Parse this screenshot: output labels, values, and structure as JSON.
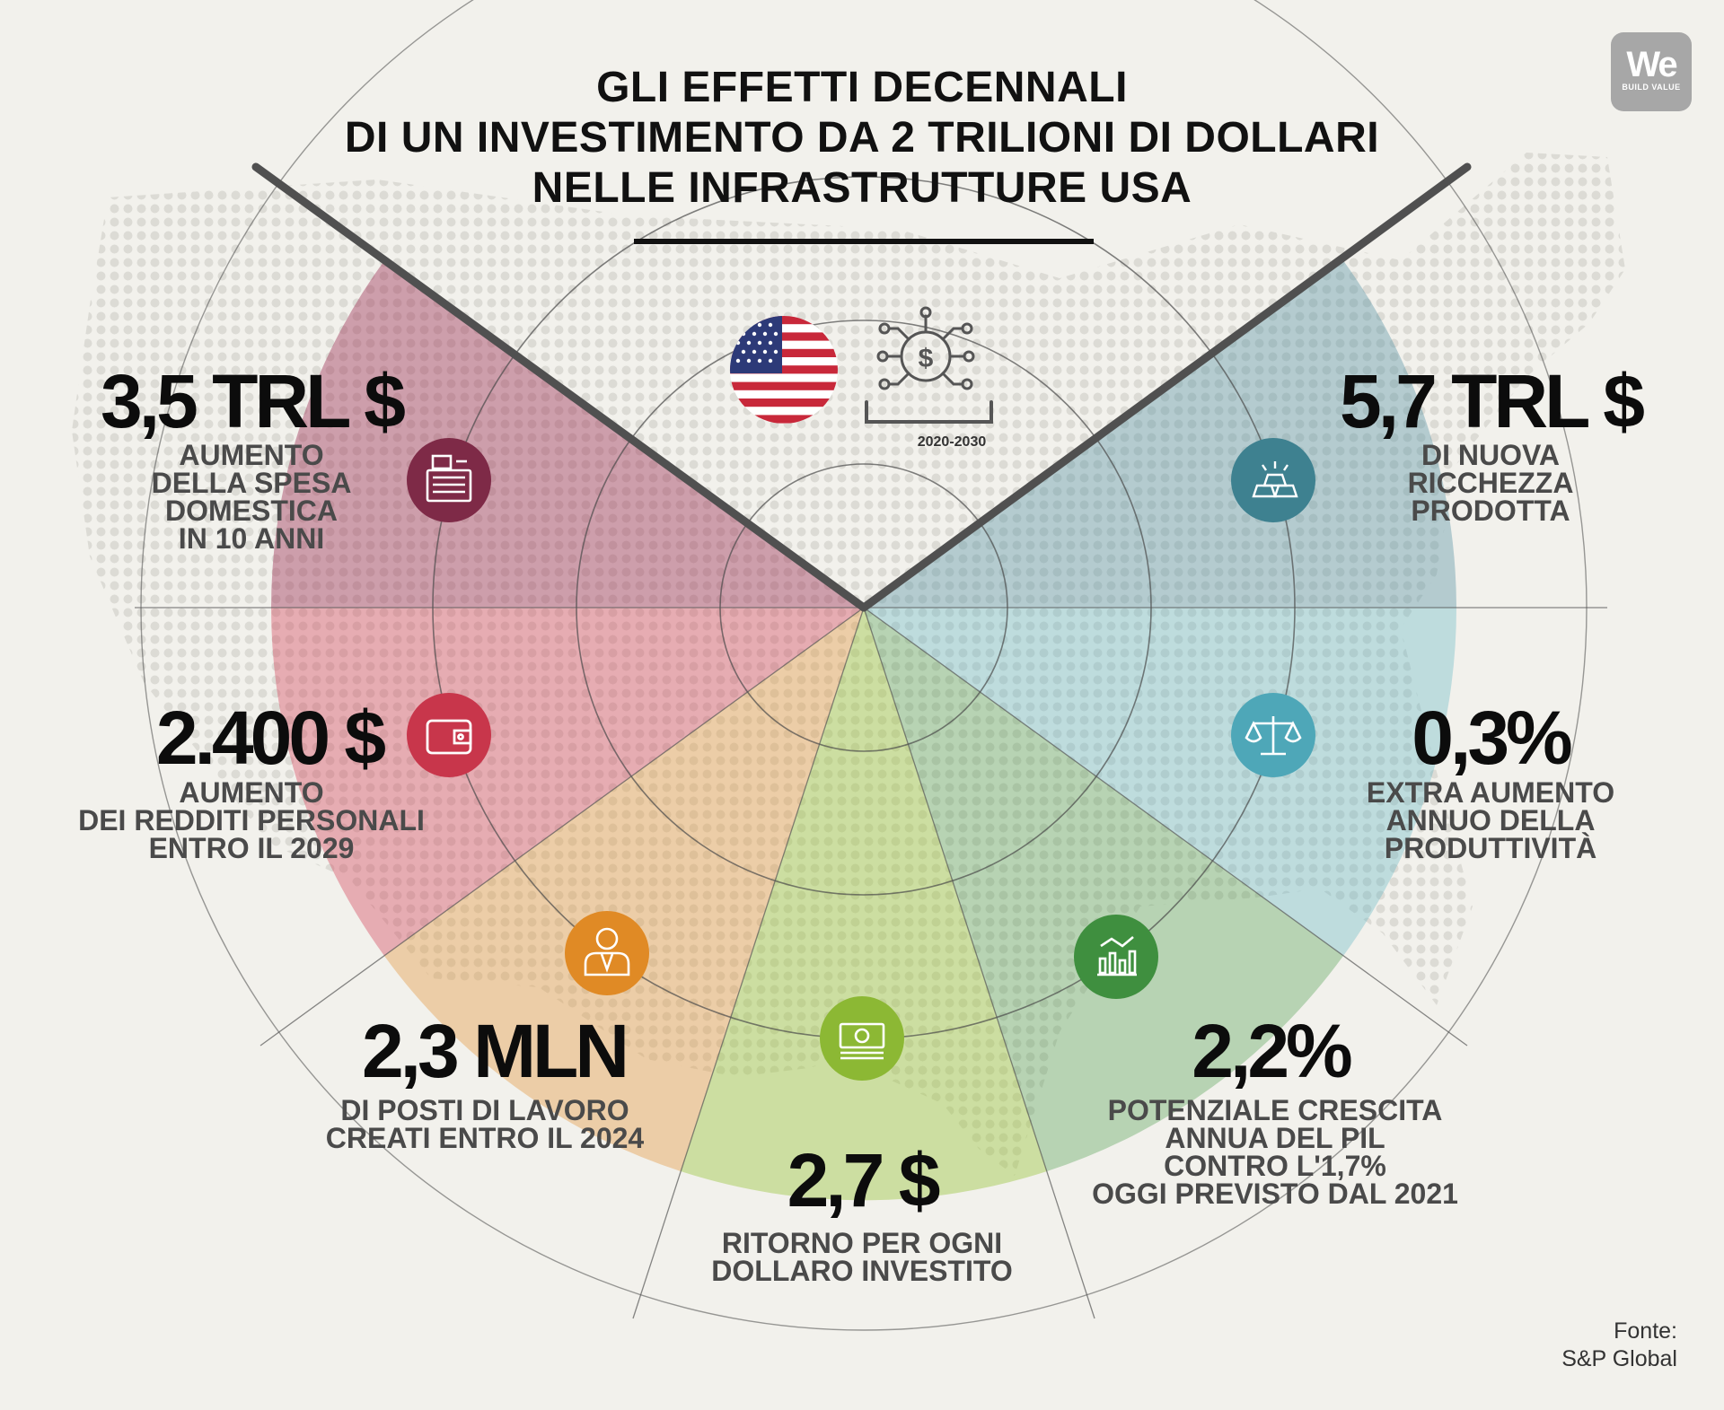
{
  "title": {
    "line1": "GLI EFFETTI DECENNALI",
    "line2": "DI UN INVESTIMENTO DA 2 TRILIONI DI DOLLARI",
    "line3": "NELLE INFRASTRUTTURE USA"
  },
  "logo": {
    "main": "We",
    "sub": "BUILD VALUE"
  },
  "years_label": "2020-2030",
  "stats": {
    "spesa": {
      "value": "3,5 TRL $",
      "lines": [
        "AUMENTO",
        "DELLA SPESA",
        "DOMESTICA",
        "IN 10 ANNI"
      ],
      "icon": "cash-register-icon",
      "color": "#7e2a47"
    },
    "redditi": {
      "value": "2.400 $",
      "lines": [
        "AUMENTO",
        "DEI REDDITI PERSONALI",
        "ENTRO IL 2029"
      ],
      "icon": "wallet-icon",
      "color": "#c8364b"
    },
    "posti": {
      "value": "2,3 MLN",
      "lines": [
        "DI POSTI DI LAVORO",
        "CREATI ENTRO IL 2024"
      ],
      "icon": "worker-icon",
      "color": "#e08a25"
    },
    "ritorno": {
      "value": "2,7 $",
      "lines": [
        "RITORNO PER OGNI",
        "DOLLARO INVESTITO"
      ],
      "icon": "banknote-icon",
      "color": "#8cb834"
    },
    "pil": {
      "value": "2,2%",
      "lines": [
        "POTENZIALE CRESCITA",
        "ANNUA DEL PIL",
        "CONTRO L'1,7%",
        "OGGI PREVISTO DAL 2021"
      ],
      "icon": "growth-chart-icon",
      "color": "#3f8f3f"
    },
    "produttivita": {
      "value": "0,3%",
      "lines": [
        "EXTRA AUMENTO",
        "ANNUO DELLA",
        "PRODUTTIVITÀ"
      ],
      "icon": "balance-scale-icon",
      "color": "#4ea7b8"
    },
    "ricchezza": {
      "value": "5,7 TRL $",
      "lines": [
        "DI NUOVA",
        "RICCHEZZA",
        "PRODOTTA"
      ],
      "icon": "gold-bars-icon",
      "color": "#3e8190"
    }
  },
  "source": {
    "line1": "Fonte:",
    "line2": "S&P Global"
  }
}
